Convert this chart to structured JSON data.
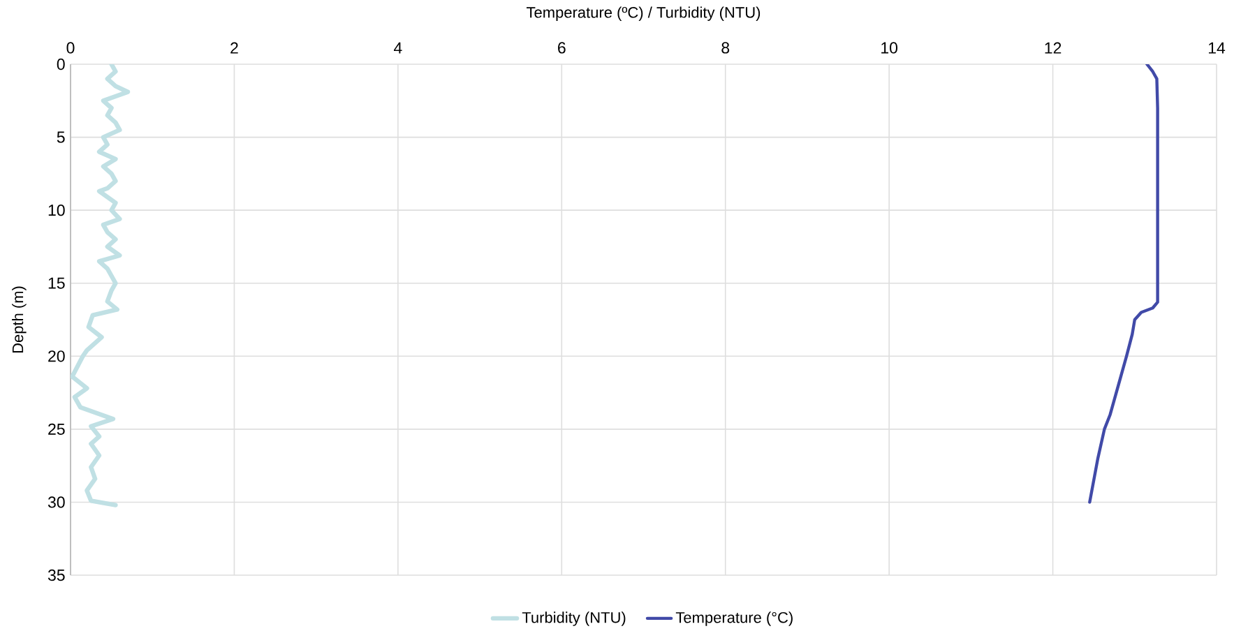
{
  "chart_data": {
    "type": "line",
    "xlabel": "Temperature (ºC) / Turbidity (NTU)",
    "ylabel": "Depth (m)",
    "xlim": [
      0,
      14
    ],
    "xticks": [
      0,
      2,
      4,
      6,
      8,
      10,
      12,
      14
    ],
    "ylim": [
      35,
      0
    ],
    "yticks": [
      0,
      5,
      10,
      15,
      20,
      25,
      30,
      35
    ],
    "grid": true,
    "legend": "bottom",
    "marker": "none",
    "line_style": "solid",
    "series": [
      {
        "name": "Turbidity (NTU)",
        "color": "#c0e0e4",
        "x": [
          0.5,
          0.55,
          0.45,
          0.55,
          0.7,
          0.4,
          0.5,
          0.45,
          0.55,
          0.6,
          0.4,
          0.45,
          0.35,
          0.55,
          0.4,
          0.5,
          0.55,
          0.45,
          0.35,
          0.55,
          0.5,
          0.6,
          0.4,
          0.45,
          0.55,
          0.45,
          0.6,
          0.35,
          0.45,
          0.5,
          0.55,
          0.5,
          0.45,
          0.57,
          0.27,
          0.22,
          0.38,
          0.2,
          0.15,
          0.02,
          0.2,
          0.05,
          0.12,
          0.52,
          0.25,
          0.35,
          0.25,
          0.35,
          0.25,
          0.3,
          0.2,
          0.25,
          0.55
        ],
        "values": [
          0,
          0.5,
          1,
          1.5,
          1.9,
          2.5,
          3,
          3.5,
          4,
          4.5,
          5,
          5.5,
          6,
          6.5,
          7,
          7.5,
          8,
          8.5,
          8.7,
          9.5,
          10,
          10.6,
          11,
          11.5,
          12,
          12.5,
          13.1,
          13.5,
          14,
          14.5,
          15,
          15.5,
          16.25,
          16.8,
          17.2,
          18,
          18.7,
          19.6,
          20,
          21.4,
          22.2,
          22.8,
          23.5,
          24.3,
          24.8,
          25.5,
          26,
          26.8,
          27.6,
          28.4,
          29.2,
          29.9,
          30.2
        ]
      },
      {
        "name": "Temperature (°C)",
        "color": "#414aa8",
        "x": [
          13.15,
          13.22,
          13.27,
          13.28,
          13.28,
          13.22,
          13.08,
          13.0,
          12.97,
          12.9,
          12.8,
          12.7,
          12.63,
          12.55,
          12.45
        ],
        "values": [
          0,
          0.5,
          1,
          3,
          16.3,
          16.7,
          17.0,
          17.5,
          18.5,
          20,
          22,
          24,
          25,
          27,
          30
        ]
      }
    ]
  }
}
